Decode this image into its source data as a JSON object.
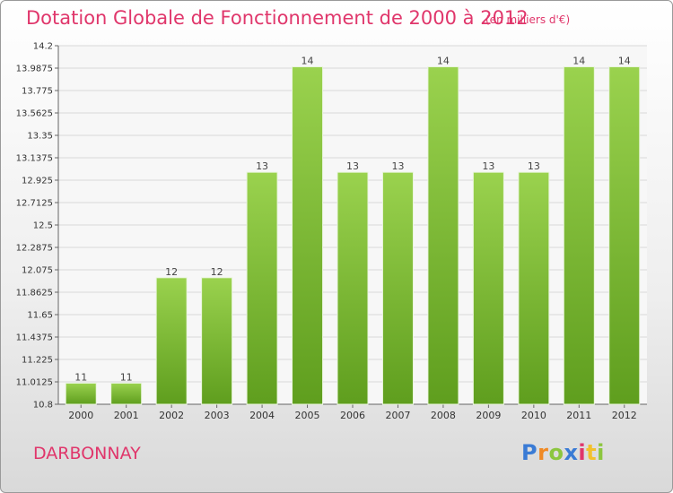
{
  "header": {
    "title": "Dotation Globale de Fonctionnement de 2000 à 2012",
    "subtitle": "(en milliers d'€)"
  },
  "footer": {
    "commune": "DARBONNAY",
    "logo_letters": [
      "P",
      "r",
      "o",
      "x",
      "i",
      "t",
      "i"
    ],
    "logo_colors": [
      "#3a7bd5",
      "#f08a24",
      "#8cc63f",
      "#3a7bd5",
      "#e0366b",
      "#f2c12e",
      "#8cc63f"
    ]
  },
  "chart_data": {
    "type": "bar",
    "title": "Dotation Globale de Fonctionnement de 2000 à 2012",
    "subtitle": "(en milliers d'€)",
    "categories": [
      "2000",
      "2001",
      "2002",
      "2003",
      "2004",
      "2005",
      "2006",
      "2007",
      "2008",
      "2009",
      "2010",
      "2011",
      "2012"
    ],
    "values": [
      11,
      11,
      12,
      12,
      13,
      14,
      13,
      13,
      14,
      13,
      13,
      14,
      14
    ],
    "ylim": [
      10.8,
      14.2
    ],
    "yticks": [
      "10.8",
      "11.0125",
      "11.225",
      "11.4375",
      "11.65",
      "11.8625",
      "12.075",
      "12.2875",
      "12.5",
      "12.7125",
      "12.925",
      "13.1375",
      "13.35",
      "13.5625",
      "13.775",
      "13.9875",
      "14.2"
    ],
    "grid": true,
    "bar_color": "#7cc233",
    "bar_color_dark": "#5f9e1e"
  }
}
